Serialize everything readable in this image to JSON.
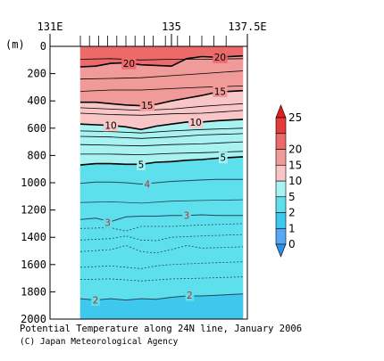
{
  "chart_data": {
    "type": "contour",
    "title": "Potential Temperature along 24N line, January 2006",
    "credit": "(C) Japan Meteorological Agency",
    "y_unit": "(m)",
    "x_ticks": [
      "131E",
      "135",
      "137.5E"
    ],
    "x_tick_values": [
      131,
      135,
      137.5
    ],
    "x_range": [
      131,
      137.5
    ],
    "y_ticks": [
      0,
      200,
      400,
      600,
      800,
      1000,
      1200,
      1400,
      1600,
      1800,
      2000
    ],
    "y_range": [
      0,
      2000
    ],
    "y_reversed": true,
    "data_start_lon": 132.0,
    "station_lons": [
      132.0,
      132.3,
      132.6,
      132.9,
      133.2,
      133.5,
      133.8,
      134.1,
      134.4,
      134.8,
      135.2,
      135.6,
      136.0,
      136.4,
      136.8
    ],
    "colorbar": {
      "levels": [
        0,
        1,
        2,
        5,
        10,
        15,
        20,
        25
      ],
      "colors": [
        "#55a8f2",
        "#3fc8ee",
        "#5ee0ec",
        "#a8f2f2",
        "#f8c6c6",
        "#f09a9a",
        "#ec6a6a",
        "#e43c3c"
      ],
      "extend_low_color": "#2f8ee6",
      "extend_high_color": "#e01e1e"
    },
    "contours": [
      {
        "value": 22,
        "labeled": false,
        "depths": [
          [
            132.0,
            95
          ],
          [
            133.0,
            90
          ],
          [
            134.0,
            100
          ],
          [
            135.0,
            95
          ],
          [
            136.0,
            95
          ],
          [
            136.9,
            90
          ]
        ]
      },
      {
        "value": 20,
        "labeled": true,
        "label_positions": [
          [
            133.6,
            125
          ],
          [
            136.6,
            80
          ]
        ],
        "depths": [
          [
            132.0,
            150
          ],
          [
            132.5,
            145
          ],
          [
            133.0,
            125
          ],
          [
            133.5,
            120
          ],
          [
            134.0,
            135
          ],
          [
            135.0,
            145
          ],
          [
            135.5,
            90
          ],
          [
            136.0,
            75
          ],
          [
            136.5,
            80
          ],
          [
            136.9,
            70
          ]
        ]
      },
      {
        "value": 18,
        "labeled": false,
        "depths": [
          [
            132.0,
            240
          ],
          [
            133.0,
            235
          ],
          [
            134.0,
            230
          ],
          [
            135.0,
            215
          ],
          [
            136.0,
            200
          ],
          [
            136.9,
            180
          ]
        ]
      },
      {
        "value": 16,
        "labeled": false,
        "depths": [
          [
            132.0,
            330
          ],
          [
            133.0,
            320
          ],
          [
            134.0,
            320
          ],
          [
            135.0,
            310
          ],
          [
            136.0,
            300
          ],
          [
            136.9,
            290
          ]
        ]
      },
      {
        "value": 15,
        "labeled": true,
        "label_positions": [
          [
            134.2,
            430
          ],
          [
            136.6,
            330
          ]
        ],
        "depths": [
          [
            132.0,
            410
          ],
          [
            132.5,
            410
          ],
          [
            133.0,
            420
          ],
          [
            133.5,
            430
          ],
          [
            134.0,
            435
          ],
          [
            134.5,
            425
          ],
          [
            135.0,
            400
          ],
          [
            135.5,
            380
          ],
          [
            136.0,
            360
          ],
          [
            136.5,
            335
          ],
          [
            136.9,
            325
          ]
        ]
      },
      {
        "value": 13,
        "labeled": false,
        "depths": [
          [
            132.0,
            450
          ],
          [
            133.0,
            460
          ],
          [
            134.0,
            470
          ],
          [
            135.0,
            460
          ],
          [
            136.0,
            440
          ],
          [
            136.9,
            420
          ]
        ]
      },
      {
        "value": 12,
        "labeled": false,
        "depths": [
          [
            132.0,
            490
          ],
          [
            133.0,
            500
          ],
          [
            134.0,
            505
          ],
          [
            135.0,
            495
          ],
          [
            136.0,
            490
          ],
          [
            136.9,
            470
          ]
        ]
      },
      {
        "value": 10,
        "labeled": true,
        "label_positions": [
          [
            133.0,
            580
          ],
          [
            135.8,
            555
          ]
        ],
        "depths": [
          [
            132.0,
            570
          ],
          [
            132.5,
            575
          ],
          [
            133.0,
            580
          ],
          [
            133.5,
            590
          ],
          [
            134.0,
            610
          ],
          [
            134.5,
            585
          ],
          [
            135.0,
            570
          ],
          [
            135.5,
            555
          ],
          [
            136.0,
            555
          ],
          [
            136.5,
            545
          ],
          [
            136.9,
            535
          ]
        ]
      },
      {
        "value": 9,
        "labeled": false,
        "depths": [
          [
            132.0,
            620
          ],
          [
            133.0,
            625
          ],
          [
            134.0,
            635
          ],
          [
            135.0,
            620
          ],
          [
            136.0,
            610
          ],
          [
            136.9,
            600
          ]
        ]
      },
      {
        "value": 8,
        "labeled": false,
        "depths": [
          [
            132.0,
            660
          ],
          [
            133.0,
            665
          ],
          [
            134.0,
            675
          ],
          [
            135.0,
            665
          ],
          [
            136.0,
            650
          ],
          [
            136.9,
            640
          ]
        ]
      },
      {
        "value": 7,
        "labeled": false,
        "depths": [
          [
            132.0,
            720
          ],
          [
            133.0,
            725
          ],
          [
            134.0,
            730
          ],
          [
            135.0,
            720
          ],
          [
            136.0,
            715
          ],
          [
            136.9,
            700
          ]
        ]
      },
      {
        "value": 6,
        "labeled": false,
        "depths": [
          [
            132.0,
            790
          ],
          [
            133.0,
            790
          ],
          [
            134.0,
            795
          ],
          [
            135.0,
            785
          ],
          [
            136.0,
            780
          ],
          [
            136.9,
            770
          ]
        ]
      },
      {
        "value": 5,
        "labeled": true,
        "label_positions": [
          [
            134.0,
            865
          ],
          [
            136.7,
            815
          ]
        ],
        "depths": [
          [
            132.0,
            870
          ],
          [
            132.5,
            860
          ],
          [
            133.0,
            860
          ],
          [
            133.5,
            865
          ],
          [
            134.0,
            865
          ],
          [
            134.5,
            850
          ],
          [
            135.0,
            845
          ],
          [
            135.5,
            835
          ],
          [
            136.0,
            830
          ],
          [
            136.5,
            820
          ],
          [
            136.9,
            810
          ]
        ]
      },
      {
        "value": 4,
        "labeled": true,
        "label_positions": [
          [
            134.2,
            1010
          ]
        ],
        "depths": [
          [
            132.0,
            1005
          ],
          [
            132.5,
            995
          ],
          [
            133.0,
            995
          ],
          [
            133.5,
            1000
          ],
          [
            134.0,
            1010
          ],
          [
            134.5,
            1000
          ],
          [
            135.0,
            990
          ],
          [
            135.5,
            985
          ],
          [
            136.0,
            980
          ],
          [
            136.5,
            975
          ],
          [
            136.9,
            975
          ]
        ]
      },
      {
        "value": 3.5,
        "labeled": false,
        "depths": [
          [
            132.0,
            1145
          ],
          [
            133.0,
            1140
          ],
          [
            134.0,
            1150
          ],
          [
            135.0,
            1135
          ],
          [
            136.0,
            1130
          ],
          [
            136.9,
            1125
          ]
        ]
      },
      {
        "value": 3,
        "labeled": true,
        "label_positions": [
          [
            132.9,
            1290
          ],
          [
            135.5,
            1240
          ]
        ],
        "depths": [
          [
            132.0,
            1270
          ],
          [
            132.5,
            1260
          ],
          [
            133.0,
            1285
          ],
          [
            133.5,
            1250
          ],
          [
            134.0,
            1245
          ],
          [
            134.5,
            1245
          ],
          [
            135.0,
            1240
          ],
          [
            135.5,
            1240
          ],
          [
            136.0,
            1235
          ],
          [
            136.5,
            1240
          ],
          [
            136.9,
            1240
          ]
        ]
      },
      {
        "value": 2.8,
        "labeled": false,
        "depths": [
          [
            132.0,
            1335
          ],
          [
            133.0,
            1330
          ],
          [
            133.5,
            1355
          ],
          [
            134.0,
            1320
          ],
          [
            135.0,
            1320
          ],
          [
            136.0,
            1310
          ],
          [
            136.9,
            1300
          ]
        ]
      },
      {
        "value": 2.6,
        "labeled": false,
        "depths": [
          [
            132.0,
            1420
          ],
          [
            133.0,
            1410
          ],
          [
            133.5,
            1390
          ],
          [
            134.0,
            1420
          ],
          [
            134.5,
            1425
          ],
          [
            135.0,
            1400
          ],
          [
            136.0,
            1390
          ],
          [
            136.9,
            1380
          ]
        ]
      },
      {
        "value": 2.4,
        "labeled": false,
        "depths": [
          [
            132.0,
            1505
          ],
          [
            133.0,
            1490
          ],
          [
            133.5,
            1460
          ],
          [
            134.0,
            1505
          ],
          [
            134.5,
            1515
          ],
          [
            135.0,
            1490
          ],
          [
            135.5,
            1460
          ],
          [
            136.0,
            1480
          ],
          [
            136.9,
            1470
          ]
        ]
      },
      {
        "value": 2.2,
        "labeled": false,
        "depths": [
          [
            132.0,
            1620
          ],
          [
            133.0,
            1610
          ],
          [
            134.0,
            1630
          ],
          [
            134.5,
            1610
          ],
          [
            135.0,
            1600
          ],
          [
            136.0,
            1590
          ],
          [
            136.9,
            1580
          ]
        ]
      },
      {
        "value": 2.1,
        "labeled": false,
        "depths": [
          [
            132.0,
            1710
          ],
          [
            133.0,
            1705
          ],
          [
            134.0,
            1720
          ],
          [
            135.0,
            1705
          ],
          [
            136.0,
            1700
          ],
          [
            136.9,
            1690
          ]
        ]
      },
      {
        "value": 2,
        "labeled": true,
        "label_positions": [
          [
            132.5,
            1860
          ],
          [
            135.6,
            1825
          ]
        ],
        "depths": [
          [
            132.0,
            1850
          ],
          [
            132.5,
            1860
          ],
          [
            133.0,
            1850
          ],
          [
            133.5,
            1860
          ],
          [
            134.0,
            1850
          ],
          [
            134.5,
            1855
          ],
          [
            135.0,
            1840
          ],
          [
            135.5,
            1830
          ],
          [
            136.0,
            1830
          ],
          [
            136.5,
            1825
          ],
          [
            136.9,
            1815
          ]
        ]
      }
    ]
  }
}
